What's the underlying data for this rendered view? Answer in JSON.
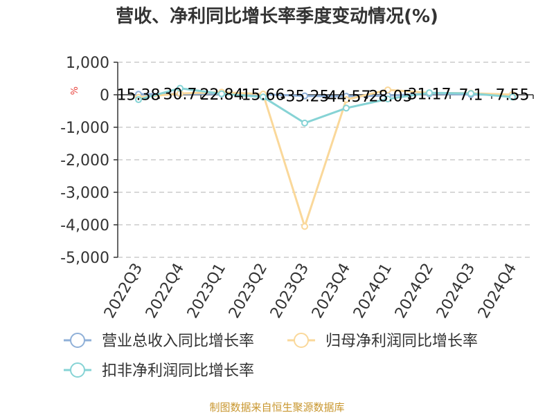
{
  "chart_data": {
    "type": "line",
    "title": "营收、净利同比增长率季度变动情况(%)",
    "unit_label": "%",
    "categories": [
      "2022Q3",
      "2022Q4",
      "2023Q1",
      "2023Q2",
      "2023Q3",
      "2023Q4",
      "2024Q1",
      "2024Q2",
      "2024Q3",
      "2024Q4"
    ],
    "ylim": [
      -5000,
      1000
    ],
    "yticks": [
      1000,
      0,
      -1000,
      -2000,
      -3000,
      -4000,
      -5000
    ],
    "ytick_labels": [
      "1,000",
      "0",
      "-1,000",
      "-2,000",
      "-3,000",
      "-4,000",
      "-5,000"
    ],
    "grid": true,
    "legend_position": "bottom",
    "series": [
      {
        "name": "营业总收入同比增长率",
        "color": "#8fb0d8",
        "values": [
          15.38,
          30.7,
          22.84,
          15.66,
          -35.25,
          -44.57,
          -28.05,
          31.17,
          7.1,
          7.55
        ],
        "labels": [
          "15.38",
          "30.7",
          "22.84",
          "15.66",
          "-35.25",
          "-44.57",
          "-28.05",
          "31.17",
          "7.1",
          "7.55"
        ]
      },
      {
        "name": "归母净利润同比增长率",
        "color": "#fad89a",
        "values": [
          -80,
          40,
          80,
          20,
          -4050,
          -150,
          150,
          60,
          50,
          5
        ]
      },
      {
        "name": "扣非净利润同比增长率",
        "color": "#86d3d5",
        "values": [
          -150,
          200,
          30,
          -70,
          -870,
          -410,
          -130,
          60,
          40,
          -70
        ]
      }
    ]
  },
  "source_text": "制图数据来自恒生聚源数据库"
}
